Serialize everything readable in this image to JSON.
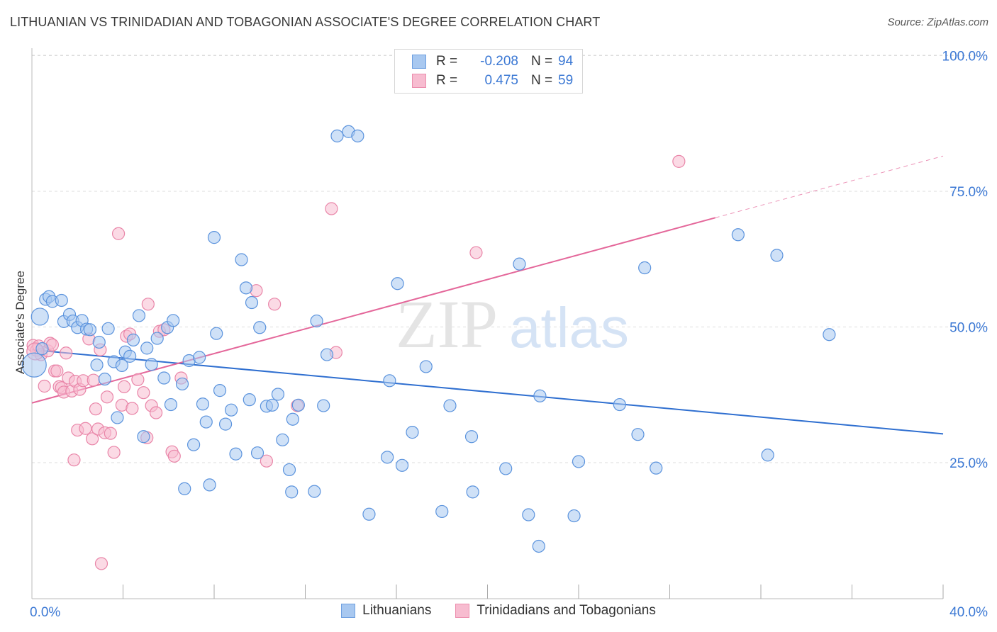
{
  "header": {
    "title": "LITHUANIAN VS TRINIDADIAN AND TOBAGONIAN ASSOCIATE'S DEGREE CORRELATION CHART",
    "source": "Source: ZipAtlas.com"
  },
  "legend": {
    "rows": [
      {
        "r_label": "R =",
        "r_value": "-0.208",
        "n_label": "N =",
        "n_value": "94",
        "color": "#a8c8f0",
        "border": "#6d9fe0"
      },
      {
        "r_label": "R =",
        "r_value": "0.475",
        "n_label": "N =",
        "n_value": "59",
        "color": "#f7bcd0",
        "border": "#ec8eae"
      }
    ]
  },
  "watermark": {
    "zip": "ZIP",
    "atlas": "atlas"
  },
  "colors": {
    "blue_fill": "#a8c8f0",
    "blue_stroke": "#5b93dd",
    "blue_line": "#2f6fd0",
    "pink_fill": "#f7bcd0",
    "pink_stroke": "#e985a8",
    "pink_line": "#e4679a",
    "axis_text": "#3b78d4",
    "grid": "#dcdcdc"
  },
  "chart_data": {
    "type": "scatter",
    "title": "LITHUANIAN VS TRINIDADIAN AND TOBAGONIAN ASSOCIATE'S DEGREE CORRELATION CHART",
    "xlabel": "",
    "ylabel": "Associate's Degree",
    "xlim": [
      0,
      40
    ],
    "ylim": [
      0,
      105
    ],
    "x_tick_labels": [
      "0.0%",
      "40.0%"
    ],
    "y_tick_labels": [
      "25.0%",
      "50.0%",
      "75.0%",
      "100.0%"
    ],
    "y_ticks": [
      25,
      50,
      75,
      100
    ],
    "grid": true,
    "legend_position": "top-center",
    "series": [
      {
        "name": "Lithuanians",
        "color": "blue",
        "trend": {
          "x": [
            0,
            40
          ],
          "y": [
            45.8,
            30.3
          ],
          "dashed_from": null
        },
        "points": [
          [
            0.45,
            46.0
          ],
          [
            0.35,
            51.9
          ],
          [
            0.6,
            55.1
          ],
          [
            0.75,
            55.6
          ],
          [
            0.9,
            54.7
          ],
          [
            1.3,
            54.9
          ],
          [
            1.4,
            51.0
          ],
          [
            1.65,
            52.3
          ],
          [
            1.8,
            51.1
          ],
          [
            2.0,
            49.9
          ],
          [
            2.2,
            51.2
          ],
          [
            2.4,
            49.6
          ],
          [
            2.55,
            49.5
          ],
          [
            2.95,
            47.2
          ],
          [
            2.85,
            43.0
          ],
          [
            3.2,
            40.4
          ],
          [
            3.35,
            49.7
          ],
          [
            3.6,
            43.6
          ],
          [
            3.75,
            33.3
          ],
          [
            3.95,
            42.9
          ],
          [
            4.1,
            45.4
          ],
          [
            4.3,
            44.6
          ],
          [
            4.45,
            47.6
          ],
          [
            4.7,
            52.1
          ],
          [
            4.9,
            29.8
          ],
          [
            5.05,
            46.1
          ],
          [
            5.25,
            43.1
          ],
          [
            5.5,
            47.9
          ],
          [
            5.8,
            40.6
          ],
          [
            5.95,
            49.9
          ],
          [
            6.1,
            35.7
          ],
          [
            6.2,
            51.2
          ],
          [
            6.6,
            39.5
          ],
          [
            6.7,
            20.2
          ],
          [
            6.9,
            43.8
          ],
          [
            7.1,
            28.3
          ],
          [
            7.35,
            44.4
          ],
          [
            7.5,
            35.8
          ],
          [
            7.65,
            32.5
          ],
          [
            7.8,
            20.9
          ],
          [
            8.0,
            66.5
          ],
          [
            8.1,
            48.8
          ],
          [
            8.25,
            38.3
          ],
          [
            8.5,
            32.1
          ],
          [
            8.75,
            34.7
          ],
          [
            8.95,
            26.6
          ],
          [
            9.2,
            62.4
          ],
          [
            9.4,
            57.2
          ],
          [
            9.55,
            36.6
          ],
          [
            9.65,
            54.5
          ],
          [
            9.9,
            26.8
          ],
          [
            10.0,
            49.9
          ],
          [
            10.3,
            35.4
          ],
          [
            10.55,
            35.6
          ],
          [
            10.8,
            37.6
          ],
          [
            11.0,
            29.2
          ],
          [
            11.3,
            23.7
          ],
          [
            11.4,
            19.6
          ],
          [
            11.45,
            33.0
          ],
          [
            11.7,
            35.6
          ],
          [
            12.4,
            19.7
          ],
          [
            12.5,
            51.1
          ],
          [
            12.8,
            35.5
          ],
          [
            12.95,
            44.9
          ],
          [
            13.4,
            85.2
          ],
          [
            13.9,
            86.0
          ],
          [
            14.3,
            85.2
          ],
          [
            14.8,
            15.5
          ],
          [
            15.6,
            26.0
          ],
          [
            15.7,
            40.1
          ],
          [
            16.05,
            58.0
          ],
          [
            16.25,
            24.5
          ],
          [
            16.7,
            30.6
          ],
          [
            17.3,
            42.7
          ],
          [
            18.0,
            16.0
          ],
          [
            18.35,
            35.5
          ],
          [
            19.3,
            29.8
          ],
          [
            19.35,
            19.6
          ],
          [
            20.8,
            23.9
          ],
          [
            21.4,
            61.6
          ],
          [
            21.8,
            15.4
          ],
          [
            22.25,
            9.6
          ],
          [
            22.3,
            37.3
          ],
          [
            23.8,
            15.2
          ],
          [
            24.0,
            25.2
          ],
          [
            25.8,
            35.7
          ],
          [
            26.6,
            30.2
          ],
          [
            26.9,
            60.9
          ],
          [
            27.4,
            24.0
          ],
          [
            31.0,
            67.0
          ],
          [
            32.3,
            26.4
          ],
          [
            32.7,
            63.2
          ],
          [
            35.0,
            48.6
          ],
          [
            0.1,
            43.0
          ]
        ]
      },
      {
        "name": "Trinidadians and Tobagonians",
        "color": "pink",
        "trend": {
          "x": [
            0,
            40
          ],
          "y": [
            36.0,
            81.5
          ],
          "dashed_from": 30.0
        },
        "points": [
          [
            0.05,
            46.6
          ],
          [
            0.2,
            45.7
          ],
          [
            0.3,
            46.5
          ],
          [
            0.4,
            44.9
          ],
          [
            0.55,
            39.1
          ],
          [
            0.7,
            45.6
          ],
          [
            0.8,
            47.0
          ],
          [
            0.9,
            46.7
          ],
          [
            1.0,
            41.9
          ],
          [
            1.1,
            41.9
          ],
          [
            1.2,
            39.0
          ],
          [
            1.3,
            38.8
          ],
          [
            1.4,
            38.0
          ],
          [
            1.5,
            45.2
          ],
          [
            1.6,
            40.6
          ],
          [
            1.75,
            38.2
          ],
          [
            1.85,
            25.5
          ],
          [
            1.9,
            40.0
          ],
          [
            2.0,
            31.0
          ],
          [
            2.1,
            38.5
          ],
          [
            2.25,
            40.1
          ],
          [
            2.35,
            31.3
          ],
          [
            2.5,
            47.8
          ],
          [
            2.65,
            29.4
          ],
          [
            2.7,
            40.2
          ],
          [
            2.8,
            34.9
          ],
          [
            2.9,
            31.2
          ],
          [
            3.0,
            45.8
          ],
          [
            3.05,
            6.4
          ],
          [
            3.2,
            30.5
          ],
          [
            3.3,
            37.1
          ],
          [
            3.45,
            30.4
          ],
          [
            3.6,
            26.9
          ],
          [
            3.8,
            67.2
          ],
          [
            3.95,
            35.6
          ],
          [
            4.05,
            39.0
          ],
          [
            4.15,
            48.3
          ],
          [
            4.3,
            48.7
          ],
          [
            4.4,
            35.0
          ],
          [
            4.65,
            40.3
          ],
          [
            4.9,
            37.9
          ],
          [
            5.05,
            29.6
          ],
          [
            5.1,
            54.2
          ],
          [
            5.25,
            35.5
          ],
          [
            5.45,
            34.2
          ],
          [
            5.6,
            49.2
          ],
          [
            5.8,
            49.5
          ],
          [
            6.15,
            27.0
          ],
          [
            6.25,
            26.2
          ],
          [
            6.55,
            40.6
          ],
          [
            9.85,
            56.7
          ],
          [
            10.3,
            25.3
          ],
          [
            10.65,
            54.2
          ],
          [
            11.65,
            35.5
          ],
          [
            13.15,
            71.8
          ],
          [
            13.35,
            45.3
          ],
          [
            19.5,
            63.7
          ],
          [
            28.4,
            80.5
          ],
          [
            0.15,
            45.5
          ]
        ]
      }
    ]
  }
}
